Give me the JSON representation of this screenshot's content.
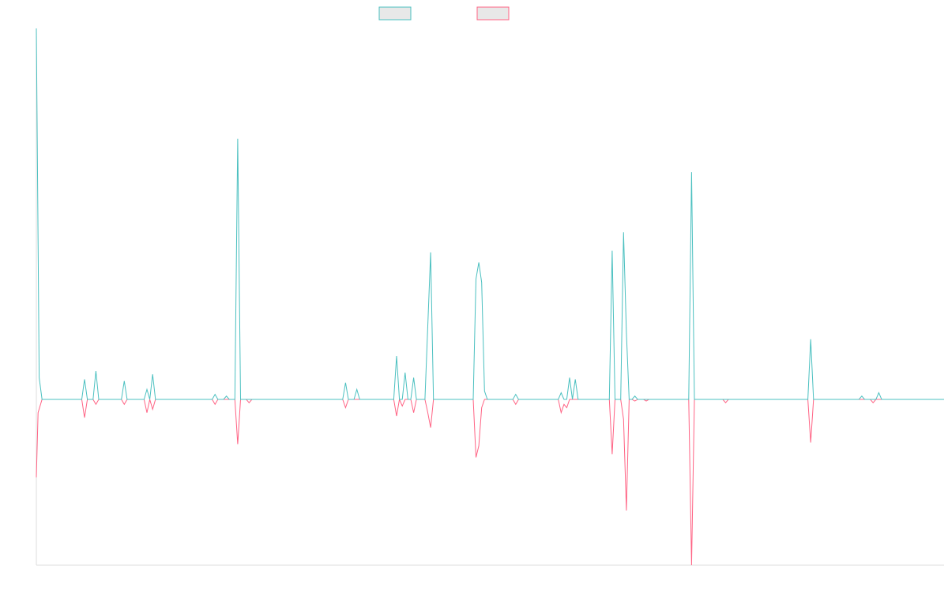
{
  "chart_data": {
    "type": "line",
    "title": "",
    "xlabel": "",
    "ylabel": "",
    "grid": false,
    "legend": "top-center",
    "colors": {
      "series_a": "#4bc0c0",
      "series_b": "#ff6384",
      "swatch_fill": "#e8e8e8",
      "axis": "#dddddd"
    },
    "x_count": 160,
    "ylim": [
      -100,
      222
    ],
    "series": [
      {
        "color": "#4bc0c0",
        "points": [
          [
            0,
            222
          ],
          [
            0.5,
            13
          ],
          [
            1,
            0
          ],
          [
            8,
            0
          ],
          [
            8.5,
            12
          ],
          [
            9,
            0
          ],
          [
            10,
            0
          ],
          [
            10.5,
            17
          ],
          [
            11,
            0
          ],
          [
            15,
            0
          ],
          [
            15.5,
            11
          ],
          [
            16,
            0
          ],
          [
            19,
            0
          ],
          [
            19.5,
            6
          ],
          [
            20,
            0
          ],
          [
            20.5,
            15
          ],
          [
            21,
            0
          ],
          [
            31,
            0
          ],
          [
            31.5,
            3
          ],
          [
            32,
            0
          ],
          [
            33,
            0
          ],
          [
            33.5,
            2
          ],
          [
            34,
            0
          ],
          [
            34.5,
            0
          ],
          [
            35,
            0
          ],
          [
            35.5,
            156
          ],
          [
            36,
            0
          ],
          [
            37,
            0
          ],
          [
            37.5,
            0
          ],
          [
            38,
            0
          ],
          [
            38.5,
            0
          ],
          [
            39,
            0
          ],
          [
            54,
            0
          ],
          [
            54.5,
            10
          ],
          [
            55,
            0
          ],
          [
            56,
            0
          ],
          [
            56.5,
            6
          ],
          [
            57,
            0
          ],
          [
            63,
            0
          ],
          [
            63.5,
            26
          ],
          [
            64,
            0
          ],
          [
            64.5,
            0
          ],
          [
            65,
            16
          ],
          [
            65.5,
            0
          ],
          [
            66,
            0
          ],
          [
            66.5,
            13
          ],
          [
            67,
            0
          ],
          [
            68.5,
            0
          ],
          [
            69.5,
            88
          ],
          [
            70,
            0
          ],
          [
            77,
            0
          ],
          [
            77.5,
            72
          ],
          [
            78,
            82
          ],
          [
            78.5,
            70
          ],
          [
            79,
            5
          ],
          [
            79.5,
            0
          ],
          [
            84,
            0
          ],
          [
            84.5,
            3
          ],
          [
            85,
            0
          ],
          [
            92,
            0
          ],
          [
            92.5,
            4
          ],
          [
            93,
            0
          ],
          [
            93.5,
            0
          ],
          [
            94,
            13
          ],
          [
            94.5,
            0
          ],
          [
            95,
            12
          ],
          [
            95.5,
            0
          ],
          [
            101,
            0
          ],
          [
            101.5,
            89
          ],
          [
            102,
            0
          ],
          [
            103,
            0
          ],
          [
            103.5,
            100
          ],
          [
            104,
            40
          ],
          [
            104.5,
            0
          ],
          [
            105,
            0
          ],
          [
            105.5,
            2
          ],
          [
            106,
            0
          ],
          [
            107,
            0
          ],
          [
            107.5,
            0
          ],
          [
            108,
            0
          ],
          [
            115,
            0
          ],
          [
            115.5,
            136
          ],
          [
            116,
            0
          ],
          [
            121,
            0
          ],
          [
            121.5,
            0
          ],
          [
            122,
            0
          ],
          [
            136,
            0
          ],
          [
            136.5,
            36
          ],
          [
            137,
            0
          ],
          [
            145,
            0
          ],
          [
            145.5,
            2
          ],
          [
            146,
            0
          ],
          [
            147,
            0
          ],
          [
            147.5,
            0
          ],
          [
            148,
            0
          ],
          [
            148.5,
            4
          ],
          [
            149,
            0
          ],
          [
            160,
            0
          ]
        ]
      },
      {
        "color": "#ff6384",
        "points": [
          [
            0,
            -47
          ],
          [
            0.3,
            -8
          ],
          [
            1,
            0
          ],
          [
            8,
            0
          ],
          [
            8.5,
            -11
          ],
          [
            9,
            0
          ],
          [
            10,
            0
          ],
          [
            10.5,
            -3
          ],
          [
            11,
            0
          ],
          [
            15,
            0
          ],
          [
            15.5,
            -3
          ],
          [
            16,
            0
          ],
          [
            19,
            0
          ],
          [
            19.5,
            -8
          ],
          [
            20,
            0
          ],
          [
            20.5,
            -6
          ],
          [
            21,
            0
          ],
          [
            31,
            0
          ],
          [
            31.5,
            -3
          ],
          [
            32,
            0
          ],
          [
            35,
            0
          ],
          [
            35.5,
            -27
          ],
          [
            36,
            0
          ],
          [
            37,
            0
          ],
          [
            37.5,
            -2
          ],
          [
            38,
            0
          ],
          [
            54,
            0
          ],
          [
            54.5,
            -5
          ],
          [
            55,
            0
          ],
          [
            63,
            0
          ],
          [
            63.5,
            -10
          ],
          [
            64,
            0
          ],
          [
            64.5,
            -4
          ],
          [
            65,
            0
          ],
          [
            66,
            0
          ],
          [
            66.5,
            -8
          ],
          [
            67,
            0
          ],
          [
            68.5,
            0
          ],
          [
            69,
            -8
          ],
          [
            69.5,
            -17
          ],
          [
            70,
            0
          ],
          [
            77,
            0
          ],
          [
            77.5,
            -35
          ],
          [
            78,
            -28
          ],
          [
            78.5,
            -5
          ],
          [
            79,
            0
          ],
          [
            84,
            0
          ],
          [
            84.5,
            -3
          ],
          [
            85,
            0
          ],
          [
            92,
            0
          ],
          [
            92.5,
            -8
          ],
          [
            93,
            -3
          ],
          [
            93.5,
            -5
          ],
          [
            94,
            0
          ],
          [
            101,
            0
          ],
          [
            101.5,
            -33
          ],
          [
            102,
            0
          ],
          [
            103,
            0
          ],
          [
            103.5,
            -12
          ],
          [
            104,
            -67
          ],
          [
            104.5,
            0
          ],
          [
            105,
            0
          ],
          [
            105.5,
            -1
          ],
          [
            106,
            0
          ],
          [
            107,
            0
          ],
          [
            107.5,
            -1
          ],
          [
            108,
            0
          ],
          [
            115,
            0
          ],
          [
            115.5,
            -100
          ],
          [
            116,
            0
          ],
          [
            121,
            0
          ],
          [
            121.5,
            -2
          ],
          [
            122,
            0
          ],
          [
            136,
            0
          ],
          [
            136.5,
            -26
          ],
          [
            137,
            0
          ],
          [
            145,
            0
          ],
          [
            145.5,
            0
          ],
          [
            146,
            0
          ],
          [
            147,
            0
          ],
          [
            147.5,
            -2
          ],
          [
            148,
            0
          ],
          [
            160,
            0
          ]
        ]
      }
    ]
  }
}
